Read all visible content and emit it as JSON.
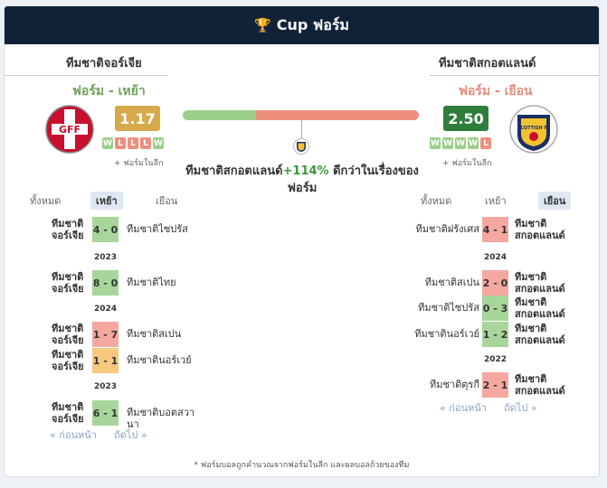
{
  "header": {
    "title": "Cup ฟอร์ม",
    "icon": "trophy-icon"
  },
  "home": {
    "name": "ทีมชาติจอร์เจีย",
    "form_title": "ฟอร์ม - เหย้า",
    "rating": "1.17",
    "rating_color": "#d8a94b",
    "recent": [
      "W",
      "L",
      "L",
      "L",
      "W"
    ],
    "note": "+ ฟอร์มในลีก",
    "logo_text": "GFF"
  },
  "away": {
    "name": "ทีมชาติสกอตแลนด์",
    "form_title": "ฟอร์ม - เยือน",
    "rating": "2.50",
    "rating_color": "#2e7d3d",
    "recent": [
      "W",
      "W",
      "W",
      "W",
      "L"
    ],
    "note": "+ ฟอร์มในลีก",
    "logo_text": "SCOTTISH FA"
  },
  "comparison": {
    "home_share": 0.31,
    "summary_team": "ทีมชาติสกอตแลนด์",
    "summary_pct": "+114%",
    "summary_rest": " ดีกว่าในเรื่องของฟอร์ม"
  },
  "filters": {
    "home": {
      "all": "ทั้งหมด",
      "home": "เหย้า",
      "away": "เยือน",
      "active": "home"
    },
    "away": {
      "all": "ทั้งหมด",
      "home": "เหย้า",
      "away": "เยือน",
      "active": "away"
    }
  },
  "home_matches": [
    {
      "team": "ทีมชาติจอร์เจีย",
      "score": "4 - 0",
      "result": "W",
      "opponent": "ทีมชาติไซปรัส"
    },
    {
      "year": "2023"
    },
    {
      "team": "ทีมชาติจอร์เจีย",
      "score": "8 - 0",
      "result": "W",
      "opponent": "ทีมชาติไทย"
    },
    {
      "year": "2024"
    },
    {
      "team": "ทีมชาติจอร์เจีย",
      "score": "1 - 7",
      "result": "L",
      "opponent": "ทีมชาติสเปน"
    },
    {
      "team": "ทีมชาติจอร์เจีย",
      "score": "1 - 1",
      "result": "D",
      "opponent": "ทีมชาตินอร์เวย์"
    },
    {
      "year": "2023"
    },
    {
      "team": "ทีมชาติจอร์เจีย",
      "score": "6 - 1",
      "result": "W",
      "opponent": "ทีมชาติบอตสวานา"
    }
  ],
  "away_matches": [
    {
      "opponent": "ทีมชาติฝรั่งเศส",
      "score": "4 - 1",
      "result": "L",
      "team": "ทีมชาติสกอตแลนด์"
    },
    {
      "year": "2024"
    },
    {
      "opponent": "ทีมชาติสเปน",
      "score": "2 - 0",
      "result": "L",
      "team": "ทีมชาติสกอตแลนด์"
    },
    {
      "opponent": "ทีมชาติไซปรัส",
      "score": "0 - 3",
      "result": "W",
      "team": "ทีมชาติสกอตแลนด์"
    },
    {
      "opponent": "ทีมชาตินอร์เวย์",
      "score": "1 - 2",
      "result": "W",
      "team": "ทีมชาติสกอตแลนด์"
    },
    {
      "year": "2022"
    },
    {
      "opponent": "ทีมชาติตุรกี",
      "score": "2 - 1",
      "result": "L",
      "team": "ทีมชาติสกอตแลนด์"
    }
  ],
  "pager": {
    "prev": "« ก่อนหน้า",
    "next": "ถัดไป »"
  },
  "footnote": "* ฟอร์มบอลถูกคำนวณจากฟอร์มในลีก และผลบอลถ้วยของทีม"
}
